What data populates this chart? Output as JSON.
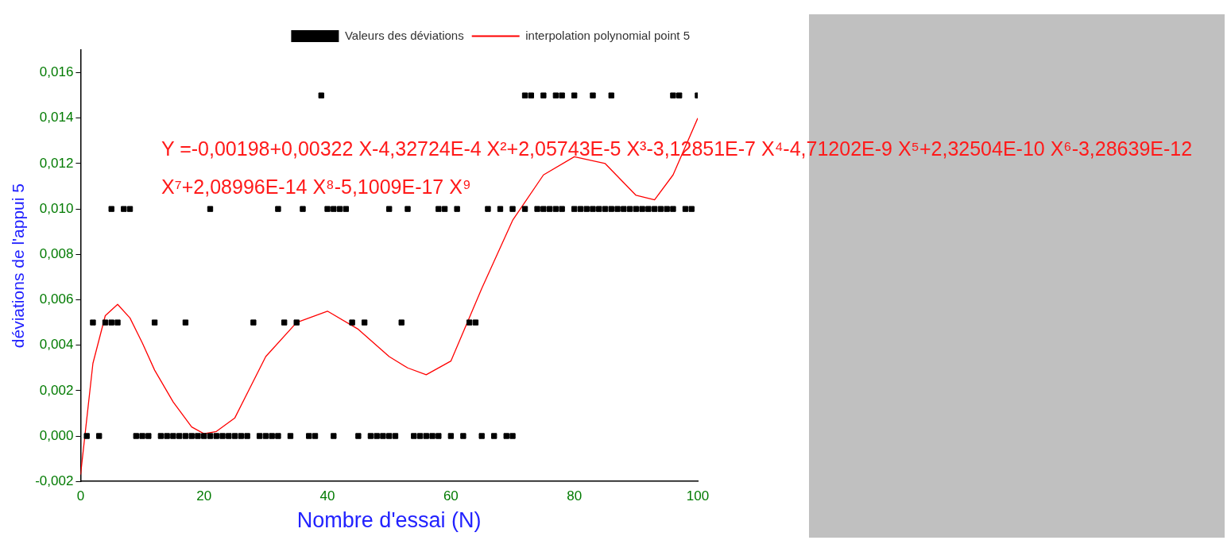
{
  "chart_data": {
    "type": "scatter",
    "xlabel": "Nombre d'essai (N)",
    "ylabel": "déviations de l'appui 5",
    "xlim": [
      0,
      100
    ],
    "xticks": [
      0,
      20,
      40,
      60,
      80,
      100
    ],
    "ylim": [
      -0.002,
      0.017
    ],
    "yticks": [
      {
        "value": -0.002,
        "label": "-0,002"
      },
      {
        "value": 0,
        "label": "0,000"
      },
      {
        "value": 0.002,
        "label": "0,002"
      },
      {
        "value": 0.004,
        "label": "0,004"
      },
      {
        "value": 0.006,
        "label": "0,006"
      },
      {
        "value": 0.008,
        "label": "0,008"
      },
      {
        "value": 0.01,
        "label": "0,010"
      },
      {
        "value": 0.012,
        "label": "0,012"
      },
      {
        "value": 0.014,
        "label": "0,014"
      },
      {
        "value": 0.016,
        "label": "0,016"
      }
    ],
    "legend": "top right",
    "grid": false,
    "annotations": [
      "Y =-0,00198+0,00322 X-4,32724E-4 X²+2,05743E-5 X³-3,12851E-7 X⁴-4,71202E-9 X⁵+2,32504E-10 X⁶-3,28639E-12 X⁷+2,08996E-14 X⁸-5,1009E-17 X⁹"
    ],
    "series": [
      {
        "name": "Valeurs des déviations",
        "marker": "square",
        "color": "#000000",
        "x": [
          39,
          72,
          73,
          75,
          77,
          78,
          80,
          83,
          86,
          96,
          97,
          100,
          5,
          7,
          8,
          21,
          32,
          36,
          40,
          41,
          42,
          43,
          50,
          53,
          58,
          59,
          61,
          66,
          68,
          70,
          72,
          74,
          75,
          76,
          77,
          78,
          80,
          81,
          82,
          83,
          84,
          85,
          86,
          87,
          88,
          89,
          90,
          91,
          92,
          93,
          94,
          95,
          96,
          98,
          99,
          2,
          4,
          5,
          6,
          12,
          17,
          28,
          33,
          35,
          44,
          46,
          52,
          63,
          64,
          1,
          3,
          9,
          10,
          11,
          13,
          14,
          15,
          16,
          17,
          18,
          19,
          20,
          21,
          22,
          23,
          24,
          25,
          26,
          27,
          29,
          30,
          31,
          32,
          34,
          37,
          38,
          41,
          45,
          47,
          48,
          49,
          50,
          51,
          54,
          55,
          56,
          57,
          58,
          60,
          62,
          65,
          67,
          69,
          70
        ],
        "values": [
          0.015,
          0.015,
          0.015,
          0.015,
          0.015,
          0.015,
          0.015,
          0.015,
          0.015,
          0.015,
          0.015,
          0.015,
          0.01,
          0.01,
          0.01,
          0.01,
          0.01,
          0.01,
          0.01,
          0.01,
          0.01,
          0.01,
          0.01,
          0.01,
          0.01,
          0.01,
          0.01,
          0.01,
          0.01,
          0.01,
          0.01,
          0.01,
          0.01,
          0.01,
          0.01,
          0.01,
          0.01,
          0.01,
          0.01,
          0.01,
          0.01,
          0.01,
          0.01,
          0.01,
          0.01,
          0.01,
          0.01,
          0.01,
          0.01,
          0.01,
          0.01,
          0.01,
          0.01,
          0.01,
          0.01,
          0.005,
          0.005,
          0.005,
          0.005,
          0.005,
          0.005,
          0.005,
          0.005,
          0.005,
          0.005,
          0.005,
          0.005,
          0.005,
          0.005,
          0,
          0,
          0,
          0,
          0,
          0,
          0,
          0,
          0,
          0,
          0,
          0,
          0,
          0,
          0,
          0,
          0,
          0,
          0,
          0,
          0,
          0,
          0,
          0,
          0,
          0,
          0,
          0,
          0,
          0,
          0,
          0,
          0,
          0,
          0,
          0,
          0,
          0,
          0,
          0,
          0,
          0,
          0,
          0,
          0
        ]
      },
      {
        "name": "interpolation polynomial point 5",
        "type": "line",
        "marker": "none",
        "line_style": "solid",
        "color": "#ff0000",
        "x": [
          0,
          2,
          4,
          6,
          8,
          10,
          12,
          15,
          18,
          20,
          22,
          25,
          30,
          35,
          40,
          45,
          50,
          53,
          56,
          60,
          65,
          70,
          75,
          80,
          85,
          90,
          93,
          96,
          100
        ],
        "values": [
          -0.0017,
          0.0032,
          0.0053,
          0.0058,
          0.0052,
          0.0041,
          0.0029,
          0.0015,
          0.0004,
          0.0001,
          0.0002,
          0.0008,
          0.0035,
          0.005,
          0.0055,
          0.0047,
          0.0035,
          0.003,
          0.0027,
          0.0033,
          0.0065,
          0.0095,
          0.0115,
          0.0123,
          0.012,
          0.0106,
          0.0104,
          0.0115,
          0.014
        ]
      }
    ]
  }
}
